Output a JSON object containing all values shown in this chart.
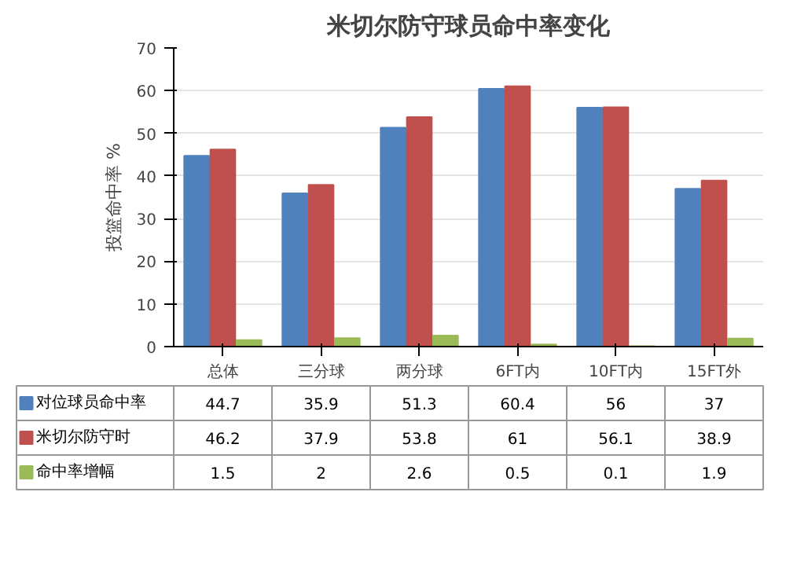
{
  "chart_data": {
    "type": "bar",
    "title": "米切尔防守球员命中率变化",
    "ylabel": "投篮命中率 %",
    "categories": [
      "总体",
      "三分球",
      "两分球",
      "6FT内",
      "10FT内",
      "15FT外"
    ],
    "series": [
      {
        "name": "对位球员命中率",
        "color": "#4f81bd",
        "values": [
          44.7,
          35.9,
          51.3,
          60.4,
          56,
          37
        ]
      },
      {
        "name": "米切尔防守时",
        "color": "#c0504d",
        "values": [
          46.2,
          37.9,
          53.8,
          61,
          56.1,
          38.9
        ]
      },
      {
        "name": "命中率增幅",
        "color": "#9bbb59",
        "values": [
          1.5,
          2,
          2.6,
          0.5,
          0.1,
          1.9
        ]
      }
    ],
    "ylim": [
      0,
      70
    ],
    "yticks": [
      0,
      10,
      20,
      30,
      40,
      50,
      60,
      70
    ],
    "grid": "y",
    "legend": "bottom",
    "data_labels": true
  }
}
